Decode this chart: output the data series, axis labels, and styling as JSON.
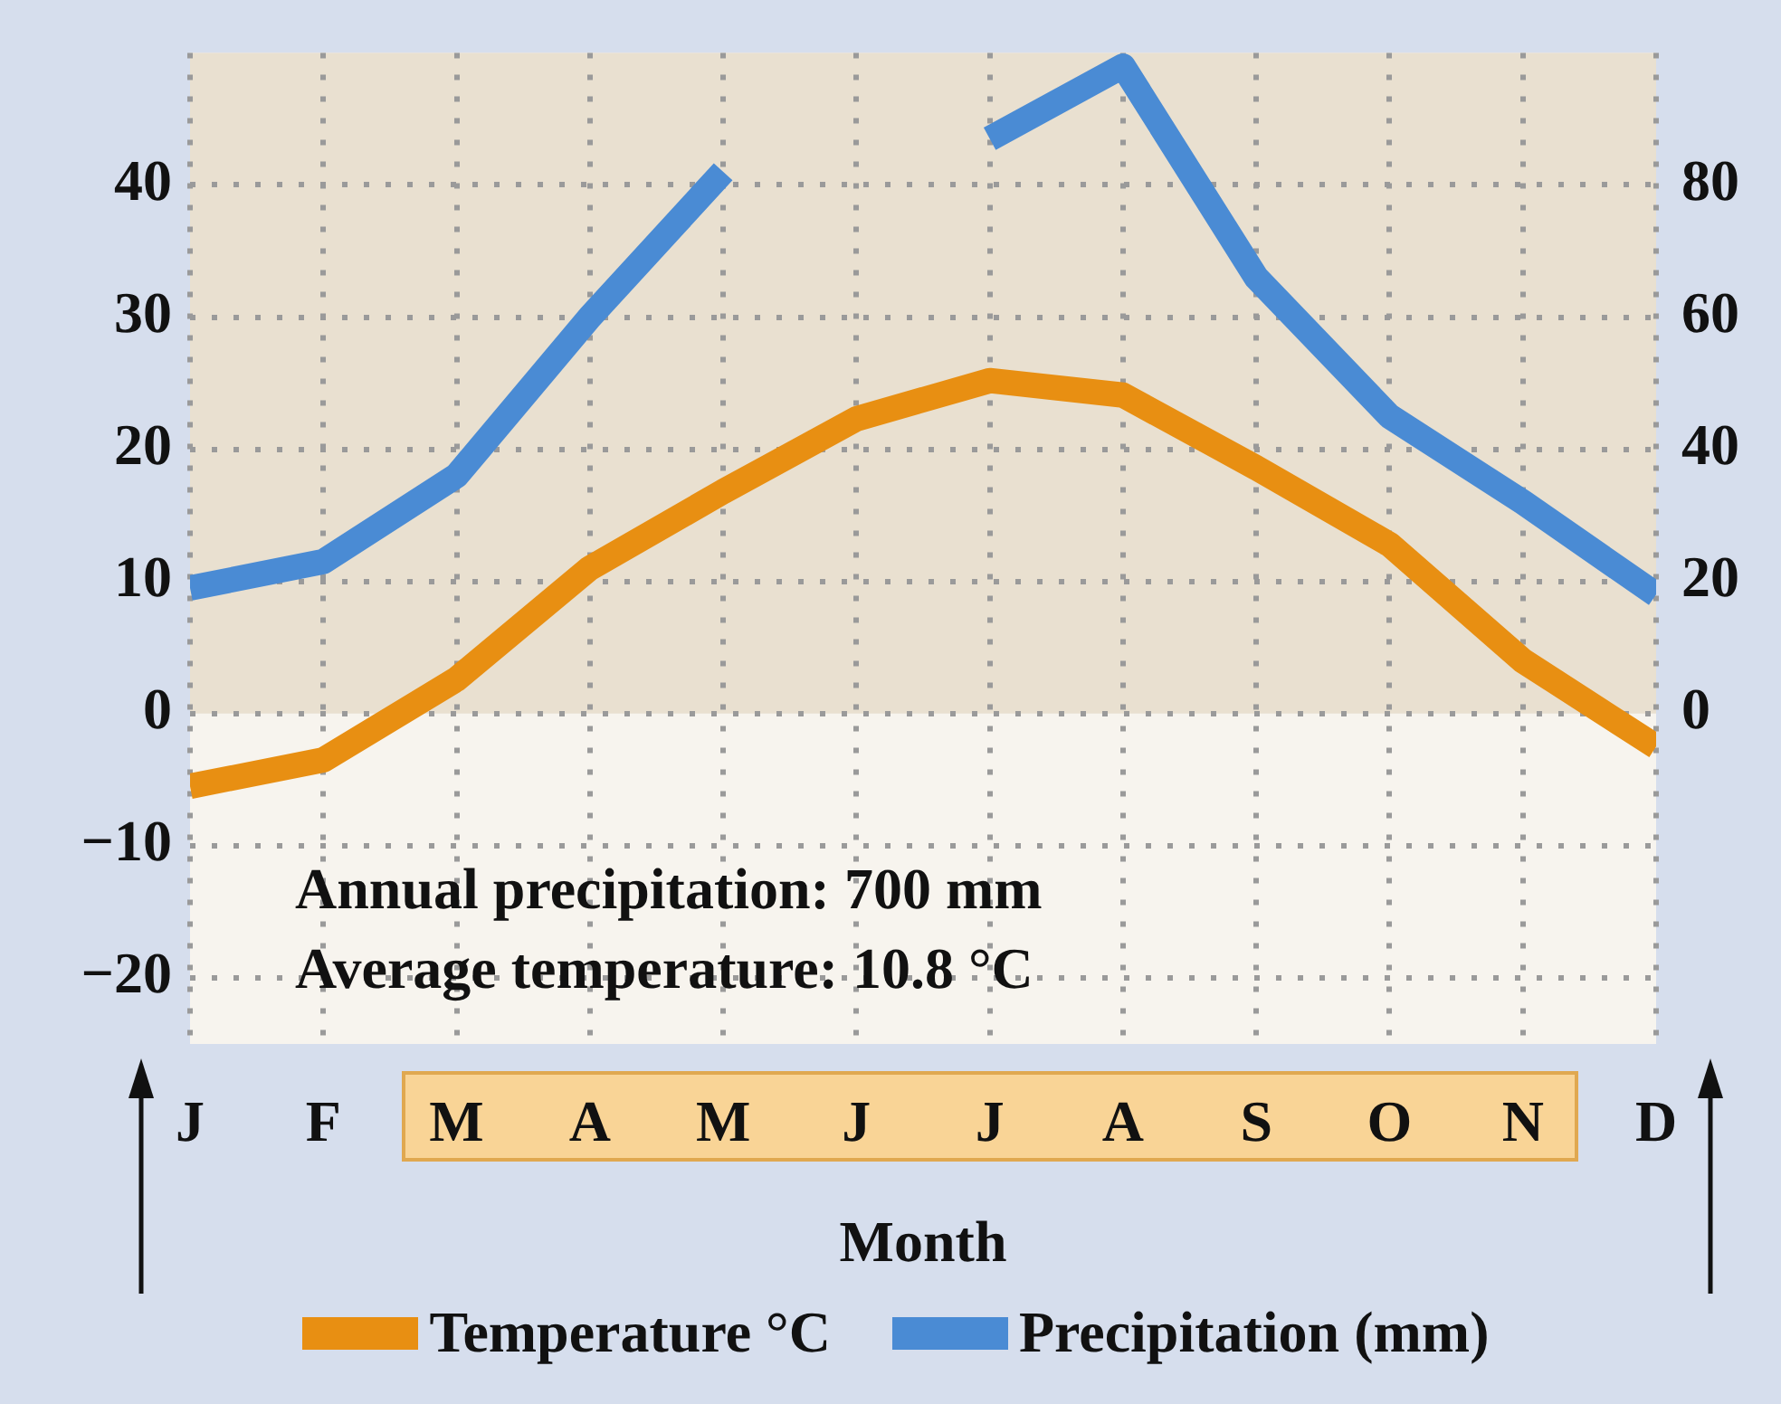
{
  "chart_data": {
    "type": "line",
    "xlabel": "Month",
    "categories": [
      "J",
      "F",
      "M",
      "A",
      "M",
      "J",
      "J",
      "A",
      "S",
      "O",
      "N",
      "D"
    ],
    "series": [
      {
        "name": "Temperature °C",
        "color": "#e88f12",
        "values": [
          -5.5,
          -3.5,
          2.6,
          11,
          16.8,
          22.3,
          25.2,
          24.1,
          18.6,
          12.8,
          4,
          -2.5
        ]
      },
      {
        "name": "Precipitation (mm)",
        "color": "#4a8bd4",
        "axis": "y2",
        "values": [
          19,
          23,
          36,
          60,
          82,
          null,
          87,
          98,
          66,
          45,
          32,
          18
        ]
      }
    ],
    "ylim": [
      -25,
      50
    ],
    "yticks": [
      {
        "value": -20,
        "label": "−20"
      },
      {
        "value": -10,
        "label": "−10"
      },
      0,
      10,
      20,
      30,
      40
    ],
    "y2lim": [
      -50,
      100
    ],
    "y2ticks": [
      0,
      20,
      40,
      60,
      80
    ],
    "grid": true,
    "marker": "none",
    "legend": "bottom",
    "annotations": [
      "Annual precipitation: 700 mm",
      "Average temperature: 10.8 °C"
    ],
    "bands": [
      {
        "axis": "y",
        "from": 0,
        "to": 50,
        "color": "#e9e0d0"
      }
    ]
  }
}
